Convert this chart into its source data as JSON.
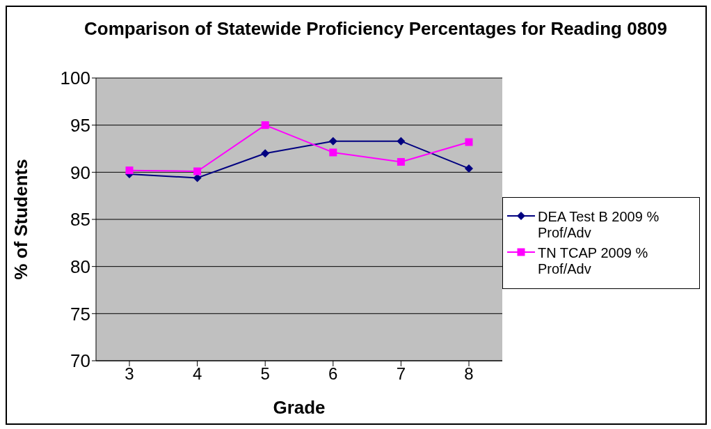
{
  "chart_data": {
    "type": "line",
    "title": "Comparison of Statewide Proficiency Percentages for Reading 0809",
    "xlabel": "Grade",
    "ylabel": "% of Students",
    "categories": [
      "3",
      "4",
      "5",
      "6",
      "7",
      "8"
    ],
    "series": [
      {
        "name": "DEA Test B 2009 % Prof/Adv",
        "color": "#000080",
        "marker": "diamond",
        "values": [
          89.8,
          89.4,
          92.0,
          93.3,
          93.3,
          90.4
        ]
      },
      {
        "name": "TN TCAP 2009 % Prof/Adv",
        "color": "#ff00ff",
        "marker": "square",
        "values": [
          90.2,
          90.1,
          95.0,
          92.1,
          91.1,
          93.2
        ]
      }
    ],
    "ylim": [
      70,
      100
    ],
    "yticks": [
      70,
      75,
      80,
      85,
      90,
      95,
      100
    ],
    "grid": "y",
    "legend": "right",
    "line_style": "solid"
  }
}
